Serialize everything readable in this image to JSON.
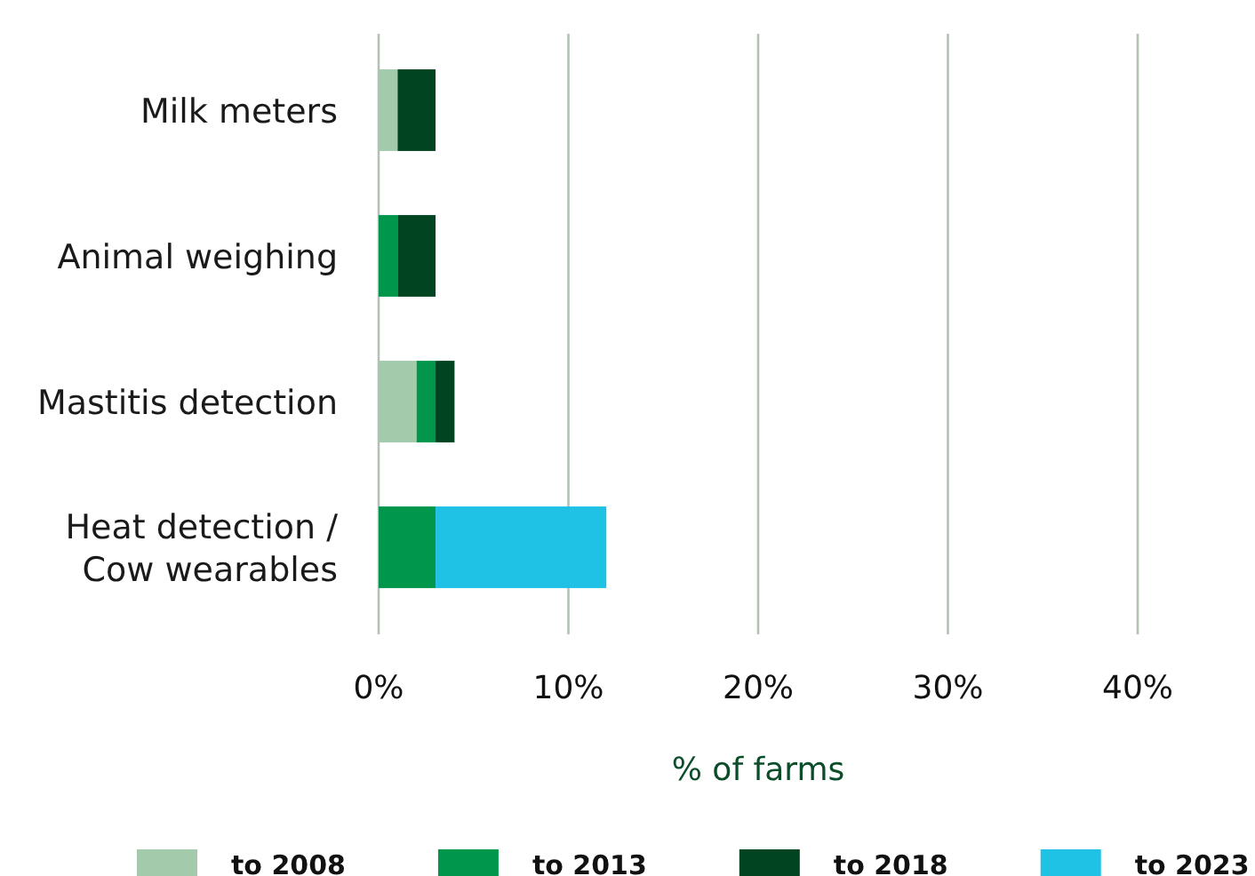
{
  "chart_data": {
    "type": "bar",
    "orientation": "horizontal",
    "stacked": true,
    "categories": [
      "Milk meters",
      "Animal weighing",
      "Mastitis detection",
      "Heat detection / Cow wearables"
    ],
    "series": [
      {
        "name": "to 2008",
        "color": "#a3cbab",
        "values": [
          1,
          0,
          2,
          0
        ]
      },
      {
        "name": "to 2013",
        "color": "#00964b",
        "values": [
          0,
          1,
          1,
          3
        ]
      },
      {
        "name": "to 2018",
        "color": "#004422",
        "values": [
          2,
          2,
          1,
          0
        ]
      },
      {
        "name": "to 2023",
        "color": "#1fc1e4",
        "values": [
          0,
          0,
          0,
          9
        ]
      }
    ],
    "xlim": [
      0,
      40
    ],
    "xticks": [
      {
        "value": 0,
        "label": "0%"
      },
      {
        "value": 10,
        "label": "10%"
      },
      {
        "value": 20,
        "label": "20%"
      },
      {
        "value": 30,
        "label": "30%"
      },
      {
        "value": 40,
        "label": "40%"
      }
    ],
    "xlabel": "% of farms",
    "grid": "x",
    "legend": "bottom"
  }
}
